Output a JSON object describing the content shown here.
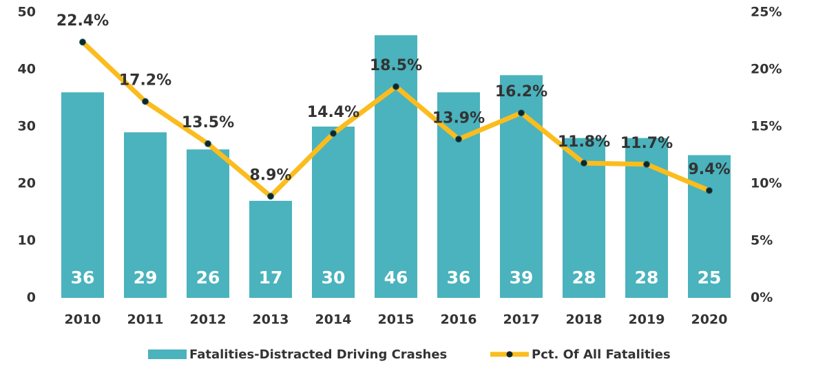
{
  "chart_data": {
    "type": "bar",
    "categories": [
      "2010",
      "2011",
      "2012",
      "2013",
      "2014",
      "2015",
      "2016",
      "2017",
      "2018",
      "2019",
      "2020"
    ],
    "series": [
      {
        "name": "Fatalities-Distracted Driving Crashes",
        "type": "bar",
        "color": "#4ab3bd",
        "values": [
          36,
          29,
          26,
          17,
          30,
          46,
          36,
          39,
          28,
          28,
          25
        ]
      },
      {
        "name": "Pct. Of All Fatalities",
        "type": "line",
        "axis": "y2",
        "color": "#fbbc1e",
        "values": [
          22.4,
          17.2,
          13.5,
          8.9,
          14.4,
          18.5,
          13.9,
          16.2,
          11.8,
          11.7,
          9.4
        ],
        "value_labels": [
          "22.4%",
          "17.2%",
          "13.5%",
          "8.9%",
          "14.4%",
          "18.5%",
          "13.9%",
          "16.2%",
          "11.8%",
          "11.7%",
          "9.4%"
        ]
      }
    ],
    "ylim": [
      0,
      50
    ],
    "yticks": [
      0,
      10,
      20,
      30,
      40,
      50
    ],
    "y2lim": [
      0,
      25
    ],
    "y2ticks": [
      {
        "value": 0,
        "label": "0%"
      },
      {
        "value": 5,
        "label": "5%"
      },
      {
        "value": 10,
        "label": "10%"
      },
      {
        "value": 15,
        "label": "15%"
      },
      {
        "value": 20,
        "label": "20%"
      },
      {
        "value": 25,
        "label": "25%"
      }
    ],
    "legend": "bottom"
  }
}
